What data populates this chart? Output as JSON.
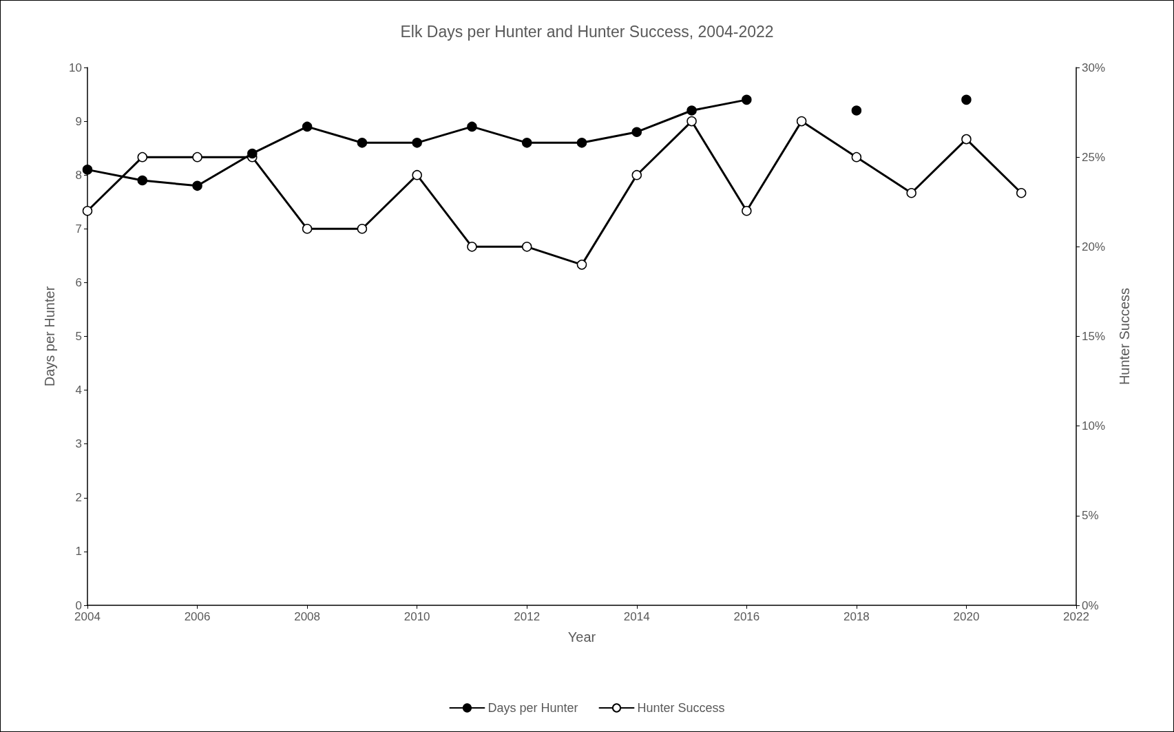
{
  "chart_data": {
    "type": "line",
    "title": "Elk Days per Hunter and Hunter Success, 2004-2022",
    "xlabel": "Year",
    "ylabel": "Days per Hunter",
    "y2label": "Hunter Success",
    "x": [
      2004,
      2005,
      2006,
      2007,
      2008,
      2009,
      2010,
      2011,
      2012,
      2013,
      2014,
      2015,
      2016,
      2017,
      2018,
      2019,
      2020,
      2021
    ],
    "series": [
      {
        "name": "Days per Hunter",
        "color": "#000000",
        "values": [
          8.1,
          7.9,
          7.8,
          8.4,
          8.9,
          8.6,
          8.6,
          8.9,
          8.6,
          8.6,
          8.8,
          9.2,
          9.4,
          null,
          9.2,
          null,
          9.4,
          null
        ]
      },
      {
        "name": "Hunter Success",
        "color": "#000000",
        "axis": "y2",
        "values": [
          22,
          25,
          25,
          25,
          21,
          21,
          24,
          20,
          20,
          19,
          24,
          27,
          22,
          27,
          25,
          23,
          26,
          23
        ]
      }
    ],
    "xlim": [
      2004,
      2022
    ],
    "xticks": [
      2004,
      2006,
      2008,
      2010,
      2012,
      2014,
      2016,
      2018,
      2020,
      2022
    ],
    "ylim": [
      0,
      10
    ],
    "yticks": [
      0,
      1,
      2,
      3,
      4,
      5,
      6,
      7,
      8,
      9,
      10
    ],
    "y2lim": [
      0,
      30
    ],
    "y2ticks": [
      {
        "value": 0,
        "label": "0%"
      },
      {
        "value": 5,
        "label": "5%"
      },
      {
        "value": 10,
        "label": "10%"
      },
      {
        "value": 15,
        "label": "15%"
      },
      {
        "value": 20,
        "label": "20%"
      },
      {
        "value": 25,
        "label": "25%"
      },
      {
        "value": 30,
        "label": "30%"
      }
    ],
    "grid": false,
    "legend": "bottom",
    "marker": "circle",
    "line_style": "solid"
  }
}
